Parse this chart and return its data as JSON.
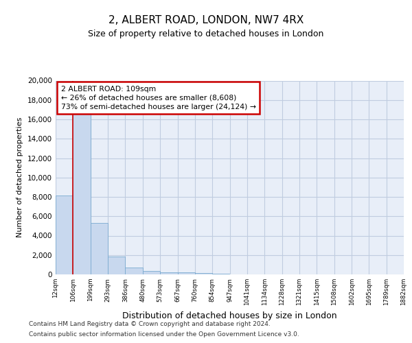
{
  "title1": "2, ALBERT ROAD, LONDON, NW7 4RX",
  "title2": "Size of property relative to detached houses in London",
  "xlabel": "Distribution of detached houses by size in London",
  "ylabel": "Number of detached properties",
  "annotation_line1": "2 ALBERT ROAD: 109sqm",
  "annotation_line2": "← 26% of detached houses are smaller (8,608)",
  "annotation_line3": "73% of semi-detached houses are larger (24,124) →",
  "property_size_bin": 106,
  "bar_edges": [
    12,
    106,
    199,
    293,
    386,
    480,
    573,
    667,
    760,
    854,
    947,
    1041,
    1134,
    1228,
    1321,
    1415,
    1508,
    1602,
    1695,
    1789,
    1882
  ],
  "bar_heights": [
    8150,
    16600,
    5300,
    1820,
    720,
    360,
    230,
    190,
    170,
    100,
    0,
    0,
    0,
    0,
    0,
    0,
    0,
    0,
    0,
    0
  ],
  "bar_color": "#c8d8ee",
  "bar_edge_color": "#7aaad0",
  "vline_color": "#cc0000",
  "annotation_box_edge": "#cc0000",
  "background_color": "#e8eef8",
  "grid_color": "#c0cce0",
  "ylim": [
    0,
    20000
  ],
  "yticks": [
    0,
    2000,
    4000,
    6000,
    8000,
    10000,
    12000,
    14000,
    16000,
    18000,
    20000
  ],
  "footer1": "Contains HM Land Registry data © Crown copyright and database right 2024.",
  "footer2": "Contains public sector information licensed under the Open Government Licence v3.0."
}
